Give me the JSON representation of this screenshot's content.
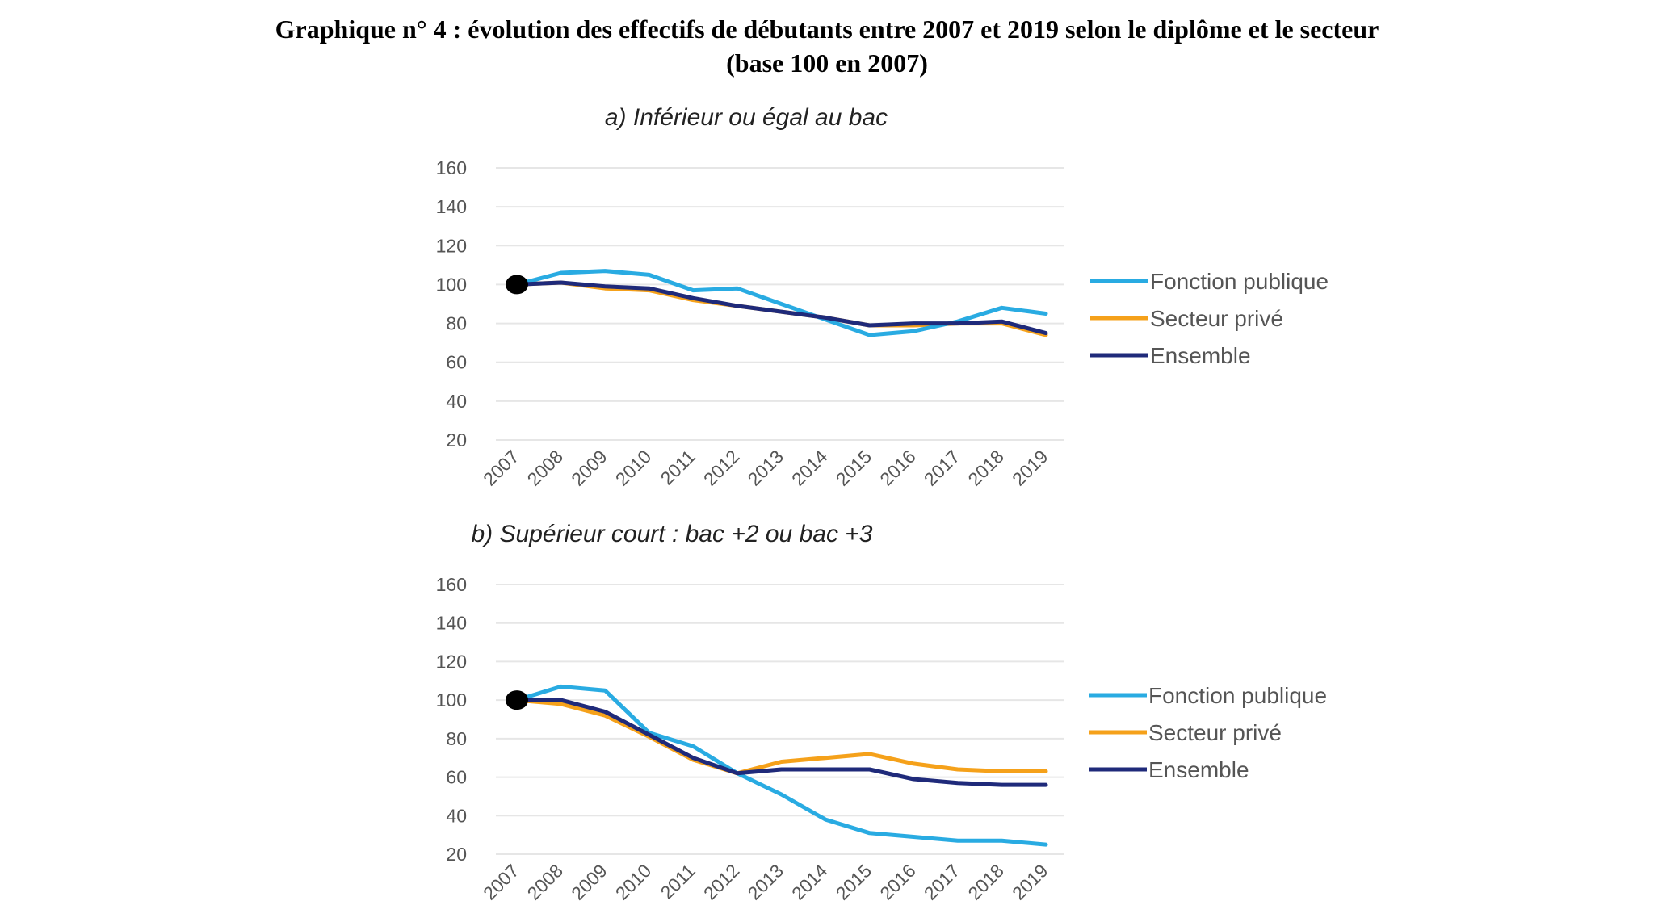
{
  "header": {
    "title_line1": "Graphique n° 4 :  évolution des effectifs de débutants entre 2007 et 2019 selon le diplôme et le secteur",
    "title_line2": "(base 100 en 2007)"
  },
  "colors": {
    "fonction_publique": "#29abe2",
    "secteur_prive": "#f5a11a",
    "ensemble": "#1f2a7a",
    "base_marker": "#000000"
  },
  "chart_data": [
    {
      "type": "line",
      "title": "a)    Inférieur ou égal au bac",
      "xlabel": "",
      "ylabel": "",
      "x": [
        "2007",
        "2008",
        "2009",
        "2010",
        "2011",
        "2012",
        "2013",
        "2014",
        "2015",
        "2016",
        "2017",
        "2018",
        "2019"
      ],
      "yticks": [
        160,
        140,
        120,
        100,
        80,
        60,
        40,
        20
      ],
      "ylim": [
        20,
        160
      ],
      "grid": true,
      "legend_position": "right",
      "series": [
        {
          "name": "Fonction publique",
          "color_key": "fonction_publique",
          "values": [
            100,
            106,
            107,
            105,
            97,
            98,
            90,
            82,
            74,
            76,
            81,
            88,
            85
          ]
        },
        {
          "name": "Secteur privé",
          "color_key": "secteur_prive",
          "values": [
            100,
            101,
            98,
            97,
            92,
            89,
            86,
            83,
            79,
            79,
            80,
            80,
            74
          ]
        },
        {
          "name": "Ensemble",
          "color_key": "ensemble",
          "values": [
            100,
            101,
            99,
            98,
            93,
            89,
            86,
            83,
            79,
            80,
            80,
            81,
            75
          ]
        }
      ],
      "base_point": {
        "x": "2007",
        "y": 100
      }
    },
    {
      "type": "line",
      "title": "b)    Supérieur court : bac +2 ou bac +3",
      "xlabel": "",
      "ylabel": "",
      "x": [
        "2007",
        "2008",
        "2009",
        "2010",
        "2011",
        "2012",
        "2013",
        "2014",
        "2015",
        "2016",
        "2017",
        "2018",
        "2019"
      ],
      "yticks": [
        160,
        140,
        120,
        100,
        80,
        60,
        40,
        20
      ],
      "ylim": [
        20,
        160
      ],
      "grid": true,
      "legend_position": "right",
      "series": [
        {
          "name": "Fonction publique",
          "color_key": "fonction_publique",
          "values": [
            100,
            107,
            105,
            83,
            76,
            62,
            51,
            38,
            31,
            29,
            27,
            27,
            25
          ]
        },
        {
          "name": "Secteur privé",
          "color_key": "secteur_prive",
          "values": [
            100,
            98,
            92,
            81,
            69,
            62,
            68,
            70,
            72,
            67,
            64,
            63,
            63
          ]
        },
        {
          "name": "Ensemble",
          "color_key": "ensemble",
          "values": [
            100,
            100,
            94,
            82,
            70,
            62,
            64,
            64,
            64,
            59,
            57,
            56,
            56
          ]
        }
      ],
      "base_point": {
        "x": "2007",
        "y": 100
      }
    }
  ]
}
